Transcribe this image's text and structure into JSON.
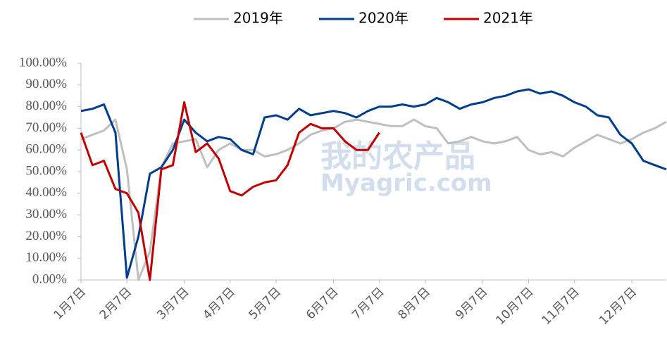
{
  "chart_data": {
    "type": "line",
    "categories": [
      "1月7日",
      null,
      null,
      null,
      "2月7日",
      null,
      null,
      null,
      null,
      "3月7日",
      null,
      null,
      null,
      "4月7日",
      null,
      null,
      null,
      "5月7日",
      null,
      null,
      null,
      null,
      "6月7日",
      null,
      null,
      null,
      "7月7日",
      null,
      null,
      null,
      "8月7日",
      null,
      null,
      null,
      null,
      "9月7日",
      null,
      null,
      null,
      "10月7日",
      null,
      null,
      null,
      "11月7日",
      null,
      null,
      null,
      null,
      "12月7日",
      null,
      null,
      null
    ],
    "series": [
      {
        "name": "2019年",
        "color": "#bfbfbf",
        "values": [
          65,
          67,
          69,
          74,
          51,
          0,
          13,
          52,
          63,
          64,
          65,
          52,
          60,
          63,
          60,
          60,
          57,
          58,
          60,
          63,
          67,
          69,
          70,
          73,
          74,
          73,
          72,
          71,
          71,
          74,
          71,
          70,
          63,
          64,
          66,
          64,
          63,
          64,
          66,
          60,
          58,
          59,
          57,
          61,
          64,
          67,
          65,
          63,
          65,
          68,
          70,
          73
        ]
      },
      {
        "name": "2020年",
        "color": "#003d8f",
        "values": [
          78,
          79,
          81,
          68,
          1,
          20,
          49,
          52,
          60,
          74,
          68,
          64,
          66,
          65,
          60,
          58,
          75,
          76,
          74,
          79,
          76,
          77,
          78,
          77,
          75,
          78,
          80,
          80,
          81,
          80,
          81,
          84,
          82,
          79,
          81,
          82,
          84,
          85,
          87,
          88,
          86,
          87,
          85,
          82,
          80,
          76,
          75,
          67,
          63,
          55,
          53,
          51
        ]
      },
      {
        "name": "2021年",
        "color": "#c00000",
        "values": [
          68,
          53,
          55,
          42,
          40,
          31,
          0,
          51,
          53,
          82,
          59,
          63,
          56,
          41,
          39,
          43,
          45,
          46,
          53,
          68,
          72,
          70,
          70,
          64,
          60,
          60,
          68,
          null,
          null,
          null,
          null,
          null,
          null,
          null,
          null,
          null,
          null,
          null,
          null,
          null,
          null,
          null,
          null,
          null,
          null,
          null,
          null,
          null,
          null,
          null,
          null,
          null
        ]
      }
    ],
    "ylim": [
      0,
      100
    ],
    "yticks": [
      {
        "value": 0,
        "label": "0.00%"
      },
      {
        "value": 10,
        "label": "10.00%"
      },
      {
        "value": 20,
        "label": "20.00%"
      },
      {
        "value": 30,
        "label": "30.00%"
      },
      {
        "value": 40,
        "label": "40.00%"
      },
      {
        "value": 50,
        "label": "50.00%"
      },
      {
        "value": 60,
        "label": "60.00%"
      },
      {
        "value": 70,
        "label": "70.00%"
      },
      {
        "value": 80,
        "label": "80.00%"
      },
      {
        "value": 90,
        "label": "90.00%"
      },
      {
        "value": 100,
        "label": "100.00%"
      }
    ],
    "legend": "top",
    "watermark": [
      "我的农产品",
      "Myagric.com"
    ]
  }
}
